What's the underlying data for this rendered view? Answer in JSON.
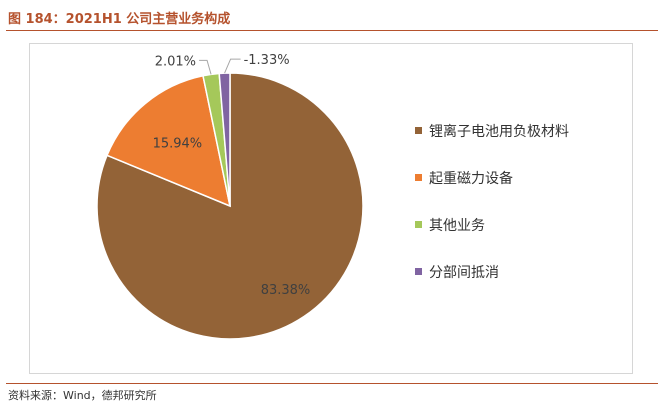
{
  "figure": {
    "title": "图 184：2021H1 公司主营业务构成",
    "source": "资料来源：Wind，德邦研究所"
  },
  "chart_data": {
    "type": "pie",
    "categories": [
      "锂离子电池用负极材料",
      "起重磁力设备",
      "其他业务",
      "分部间抵消"
    ],
    "values": [
      83.38,
      15.94,
      2.01,
      -1.33
    ],
    "labels": [
      "83.38%",
      "15.94%",
      "2.01%",
      "-1.33%"
    ],
    "colors": [
      "#936337",
      "#ed7d31",
      "#a5c85a",
      "#8064a2"
    ],
    "legend_position": "right",
    "title": "",
    "xlabel": "",
    "ylabel": ""
  }
}
